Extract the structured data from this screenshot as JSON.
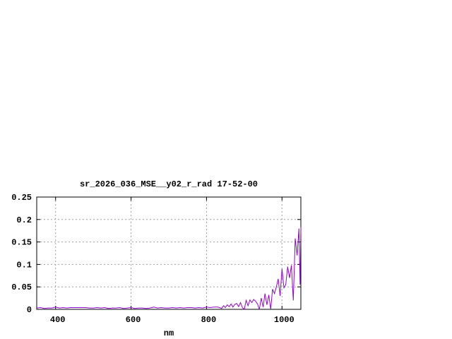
{
  "chart_data": {
    "type": "line",
    "title": "sr_2026_036_MSE__y02_r_rad 17-52-00",
    "xlabel": "nm",
    "ylabel": "",
    "xlim": [
      350,
      1050
    ],
    "ylim": [
      0,
      0.25
    ],
    "xticks": [
      400,
      600,
      800,
      1000
    ],
    "xtick_labels": [
      "400",
      "600",
      "800",
      "1000"
    ],
    "yticks": [
      0,
      0.05,
      0.1,
      0.15,
      0.2,
      0.25
    ],
    "ytick_labels": [
      "0",
      "0.05",
      "0.1",
      "0.15",
      "0.2",
      "0.25"
    ],
    "grid": true,
    "color": "#9400d3",
    "series": [
      {
        "x": [
          350,
          360,
          370,
          380,
          390,
          400,
          410,
          420,
          430,
          440,
          450,
          460,
          470,
          480,
          490,
          500,
          510,
          520,
          530,
          540,
          550,
          560,
          570,
          580,
          590,
          600,
          610,
          620,
          630,
          640,
          650,
          660,
          670,
          680,
          690,
          700,
          710,
          720,
          730,
          740,
          750,
          760,
          770,
          780,
          790,
          800,
          810,
          820,
          830,
          840,
          845,
          850,
          855,
          860,
          865,
          870,
          875,
          880,
          885,
          890,
          895,
          900,
          905,
          910,
          915,
          920,
          925,
          930,
          935,
          940,
          945,
          950,
          955,
          960,
          965,
          970,
          975,
          980,
          985,
          990,
          995,
          1000,
          1005,
          1010,
          1015,
          1020,
          1025,
          1030,
          1035,
          1040,
          1045,
          1048,
          1050
        ],
        "y": [
          0.003,
          0.004,
          0.002,
          0.003,
          0.003,
          0.005,
          0.003,
          0.004,
          0.003,
          0.004,
          0.004,
          0.004,
          0.004,
          0.004,
          0.003,
          0.003,
          0.004,
          0.003,
          0.004,
          0.002,
          0.003,
          0.003,
          0.004,
          0.002,
          0.003,
          0.004,
          0.002,
          0.003,
          0.003,
          0.002,
          0.003,
          0.005,
          0.003,
          0.004,
          0.003,
          0.003,
          0.004,
          0.003,
          0.004,
          0.003,
          0.004,
          0.004,
          0.003,
          0.004,
          0.003,
          0.005,
          0.004,
          0.005,
          0.005,
          0.002,
          0.008,
          0.004,
          0.01,
          0.006,
          0.012,
          0.005,
          0.011,
          0.013,
          0.006,
          0.015,
          0.004,
          0.0,
          0.02,
          0.008,
          0.021,
          0.015,
          0.022,
          0.018,
          0.012,
          0.0,
          0.025,
          0.005,
          0.035,
          0.01,
          0.032,
          0.0,
          0.045,
          0.035,
          0.05,
          0.068,
          0.03,
          0.09,
          0.048,
          0.055,
          0.095,
          0.07,
          0.098,
          0.02,
          0.158,
          0.12,
          0.18,
          0.055,
          0.183
        ]
      }
    ]
  }
}
